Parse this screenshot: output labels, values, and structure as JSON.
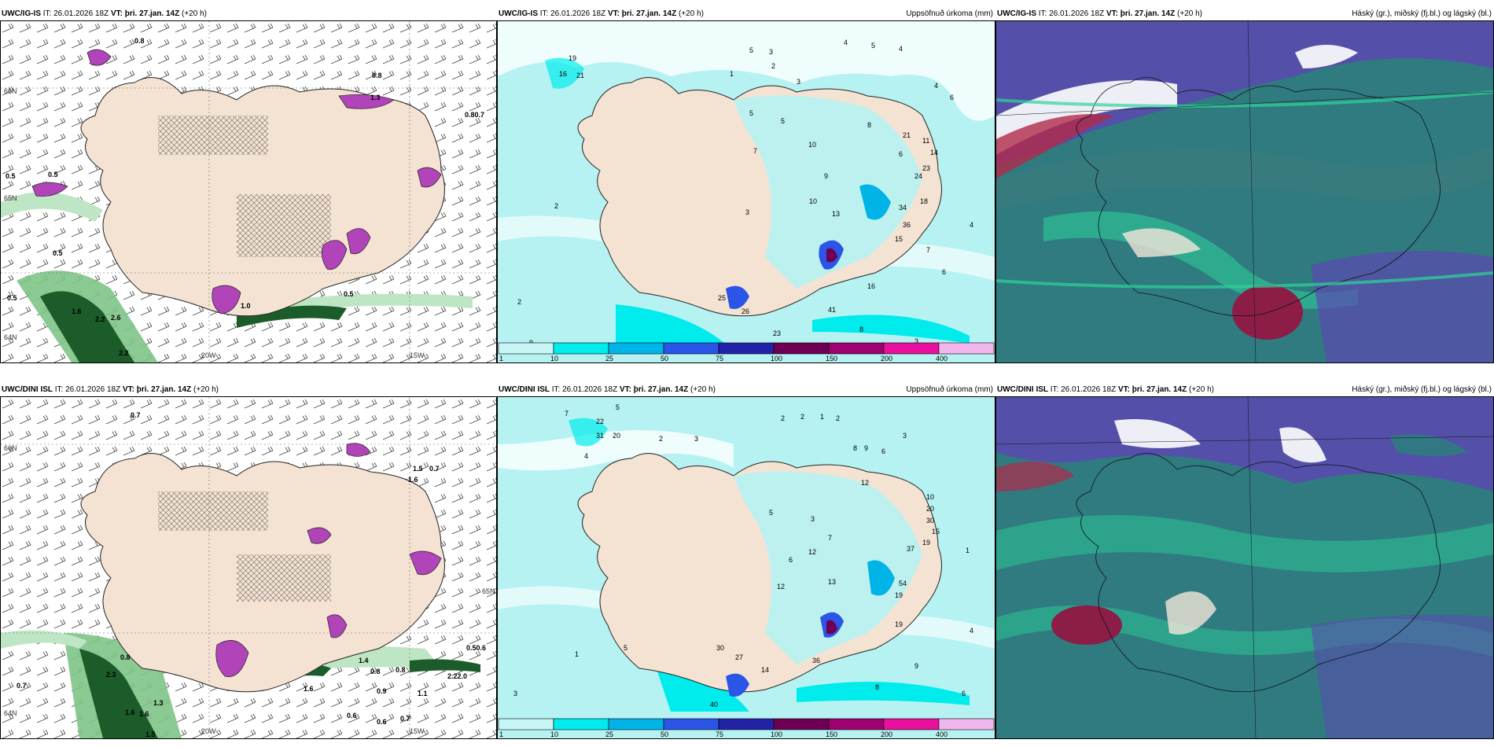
{
  "panels": [
    {
      "model": "UWC/IG-IS",
      "it_label": "IT:",
      "it_value": "26.01.2026 18Z",
      "vt_label": "VT:",
      "vt_value": "þri. 27.jan. 14Z",
      "lead": "(+20 h)",
      "subtitle": "",
      "lat_labels": [
        "66N",
        "65N",
        "64N"
      ],
      "lon_labels": [
        "20W",
        "15W"
      ],
      "values": [
        "0.8",
        "0.5",
        "0.5",
        "0.8",
        "0.80.7",
        "0.5",
        "0.5",
        "0.5",
        "1.6",
        "2.2",
        "2.6",
        "2.2",
        "1.0",
        "1.3"
      ]
    },
    {
      "model": "UWC/IG-IS",
      "it_label": "IT:",
      "it_value": "26.01.2026 18Z",
      "vt_label": "VT:",
      "vt_value": "þri. 27.jan. 14Z",
      "lead": "(+20 h)",
      "subtitle": "Uppsöfnuð úrkoma (mm)",
      "values": [
        "5",
        "3",
        "4",
        "5",
        "4",
        "19",
        "16",
        "21",
        "1",
        "2",
        "3",
        "4",
        "6",
        "5",
        "5",
        "10",
        "7",
        "9",
        "8",
        "6",
        "21",
        "11",
        "14",
        "23",
        "24",
        "18",
        "2",
        "10",
        "3",
        "34",
        "36",
        "15",
        "13",
        "7",
        "6",
        "4",
        "2",
        "25",
        "26",
        "16",
        "41",
        "23",
        "9",
        "8",
        "3"
      ],
      "colorbar_ticks": [
        "1",
        "10",
        "25",
        "50",
        "75",
        "100",
        "150",
        "200",
        "400"
      ]
    },
    {
      "model": "UWC/IG-IS",
      "it_label": "IT:",
      "it_value": "26.01.2026 18Z",
      "vt_label": "VT:",
      "vt_value": "þri. 27.jan. 14Z",
      "lead": "(+20 h)",
      "subtitle": "Háský (gr.), miðský (fj.bl.) og lágský (bl.)"
    },
    {
      "model": "UWC/DINI ISL",
      "it_label": "IT:",
      "it_value": "26.01.2026 18Z",
      "vt_label": "VT:",
      "vt_value": "þri. 27.jan. 14Z",
      "lead": "(+20 h)",
      "subtitle": "",
      "lat_labels": [
        "66N",
        "64N",
        "65N"
      ],
      "lon_labels": [
        "20W",
        "15W"
      ],
      "values": [
        "0.7",
        "1.5",
        "0.7",
        "1.6",
        "0.50.6",
        "0.7",
        "2.3",
        "0.8",
        "1.3",
        "1.6",
        "1.6",
        "1.5",
        "1.4",
        "1.6",
        "0.8",
        "0.9",
        "0.8",
        "1.1",
        "2.22.0",
        "0.6",
        "0.6",
        "0.7"
      ]
    },
    {
      "model": "UWC/DINI ISL",
      "it_label": "IT:",
      "it_value": "26.01.2026 18Z",
      "vt_label": "VT:",
      "vt_value": "þri. 27.jan. 14Z",
      "lead": "(+20 h)",
      "subtitle": "Uppsöfnuð úrkoma (mm)",
      "values": [
        "7",
        "5",
        "22",
        "31",
        "20",
        "4",
        "2",
        "3",
        "2",
        "2",
        "1",
        "2",
        "8",
        "9",
        "6",
        "3",
        "12",
        "7",
        "5",
        "3",
        "10",
        "20",
        "30",
        "15",
        "19",
        "37",
        "54",
        "19",
        "12",
        "1",
        "4",
        "6",
        "12",
        "13",
        "19",
        "30",
        "27",
        "14",
        "36",
        "40",
        "9",
        "8",
        "6",
        "3",
        "1",
        "5"
      ],
      "colorbar_ticks": [
        "1",
        "10",
        "25",
        "50",
        "75",
        "100",
        "150",
        "200",
        "400"
      ]
    },
    {
      "model": "UWC/DINI ISL",
      "it_label": "IT:",
      "it_value": "26.01.2026 18Z",
      "vt_label": "VT:",
      "vt_value": "þri. 27.jan. 14Z",
      "lead": "(+20 h)",
      "subtitle": "Háský (gr.), miðský (fj.bl.) og lágský (bl.)"
    }
  ],
  "colorbar_colors": [
    "#c8f6f6",
    "#00ecec",
    "#00b4e8",
    "#2a55e6",
    "#2222a8",
    "#6e0054",
    "#9e0070",
    "#e8109c",
    "#f2b6ee"
  ],
  "colors": {
    "land": "#f4e3d3",
    "sea_precip_light": "#b6f2f2",
    "wind_green": "#a9dcae",
    "wind_dark": "#1c5c2a",
    "precip_purple": "#b044b8",
    "cloud_high": "#2f7b80",
    "cloud_mid": "#5b49b0",
    "cloud_low": "#2dd49a"
  }
}
